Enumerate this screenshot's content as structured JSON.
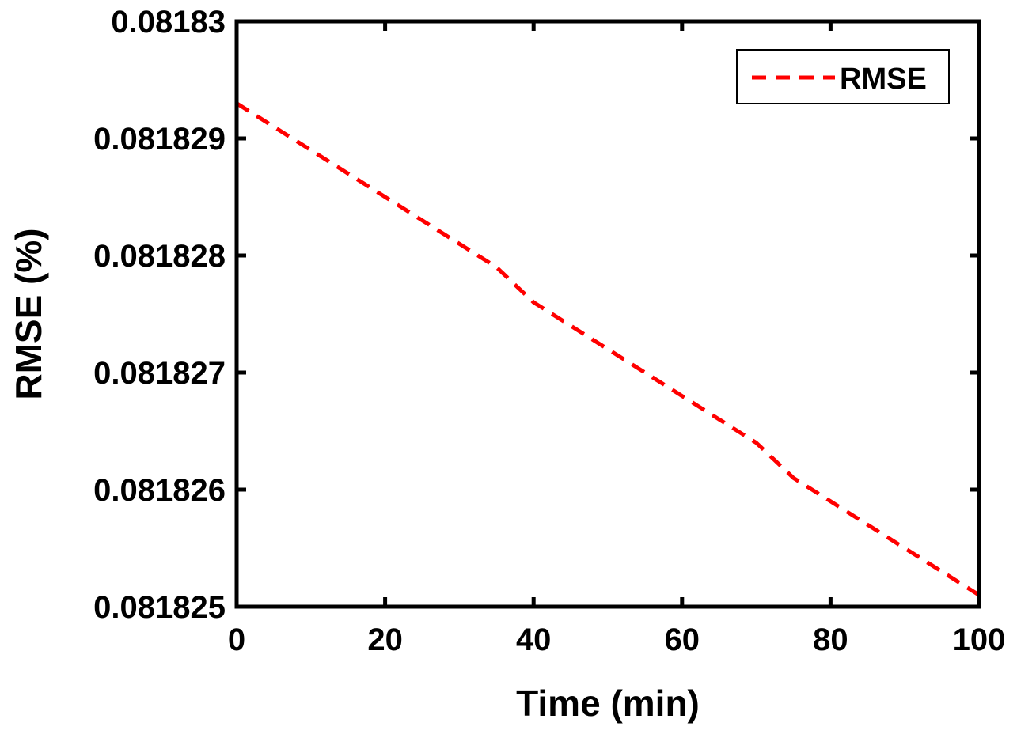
{
  "chart_data": {
    "type": "line",
    "title": "",
    "xlabel": "Time (min)",
    "ylabel": "RMSE (%)",
    "xlim": [
      0,
      100
    ],
    "ylim": [
      0.081825,
      0.08183
    ],
    "x_ticks": [
      0,
      20,
      40,
      60,
      80,
      100
    ],
    "x_tick_labels": [
      "0",
      "20",
      "40",
      "60",
      "80",
      "100"
    ],
    "y_ticks": [
      0.081825,
      0.081826,
      0.081827,
      0.081828,
      0.081829,
      0.08183
    ],
    "y_tick_labels": [
      "0.081825",
      "0.081826",
      "0.081827",
      "0.081828",
      "0.081829",
      "0.08183"
    ],
    "grid": false,
    "legend_position": "top-right",
    "series": [
      {
        "name": "RMSE",
        "color": "#ff0000",
        "line_style": "dashed",
        "x": [
          0,
          10,
          20,
          25,
          30,
          35,
          40,
          45,
          50,
          55,
          60,
          65,
          70,
          75,
          80,
          85,
          90,
          95,
          100
        ],
        "y": [
          0.0818293,
          0.0818289,
          0.0818285,
          0.0818283,
          0.0818281,
          0.0818279,
          0.0818276,
          0.0818274,
          0.0818272,
          0.081827,
          0.0818268,
          0.0818266,
          0.0818264,
          0.0818261,
          0.0818259,
          0.0818257,
          0.0818255,
          0.0818253,
          0.0818251
        ]
      }
    ]
  }
}
